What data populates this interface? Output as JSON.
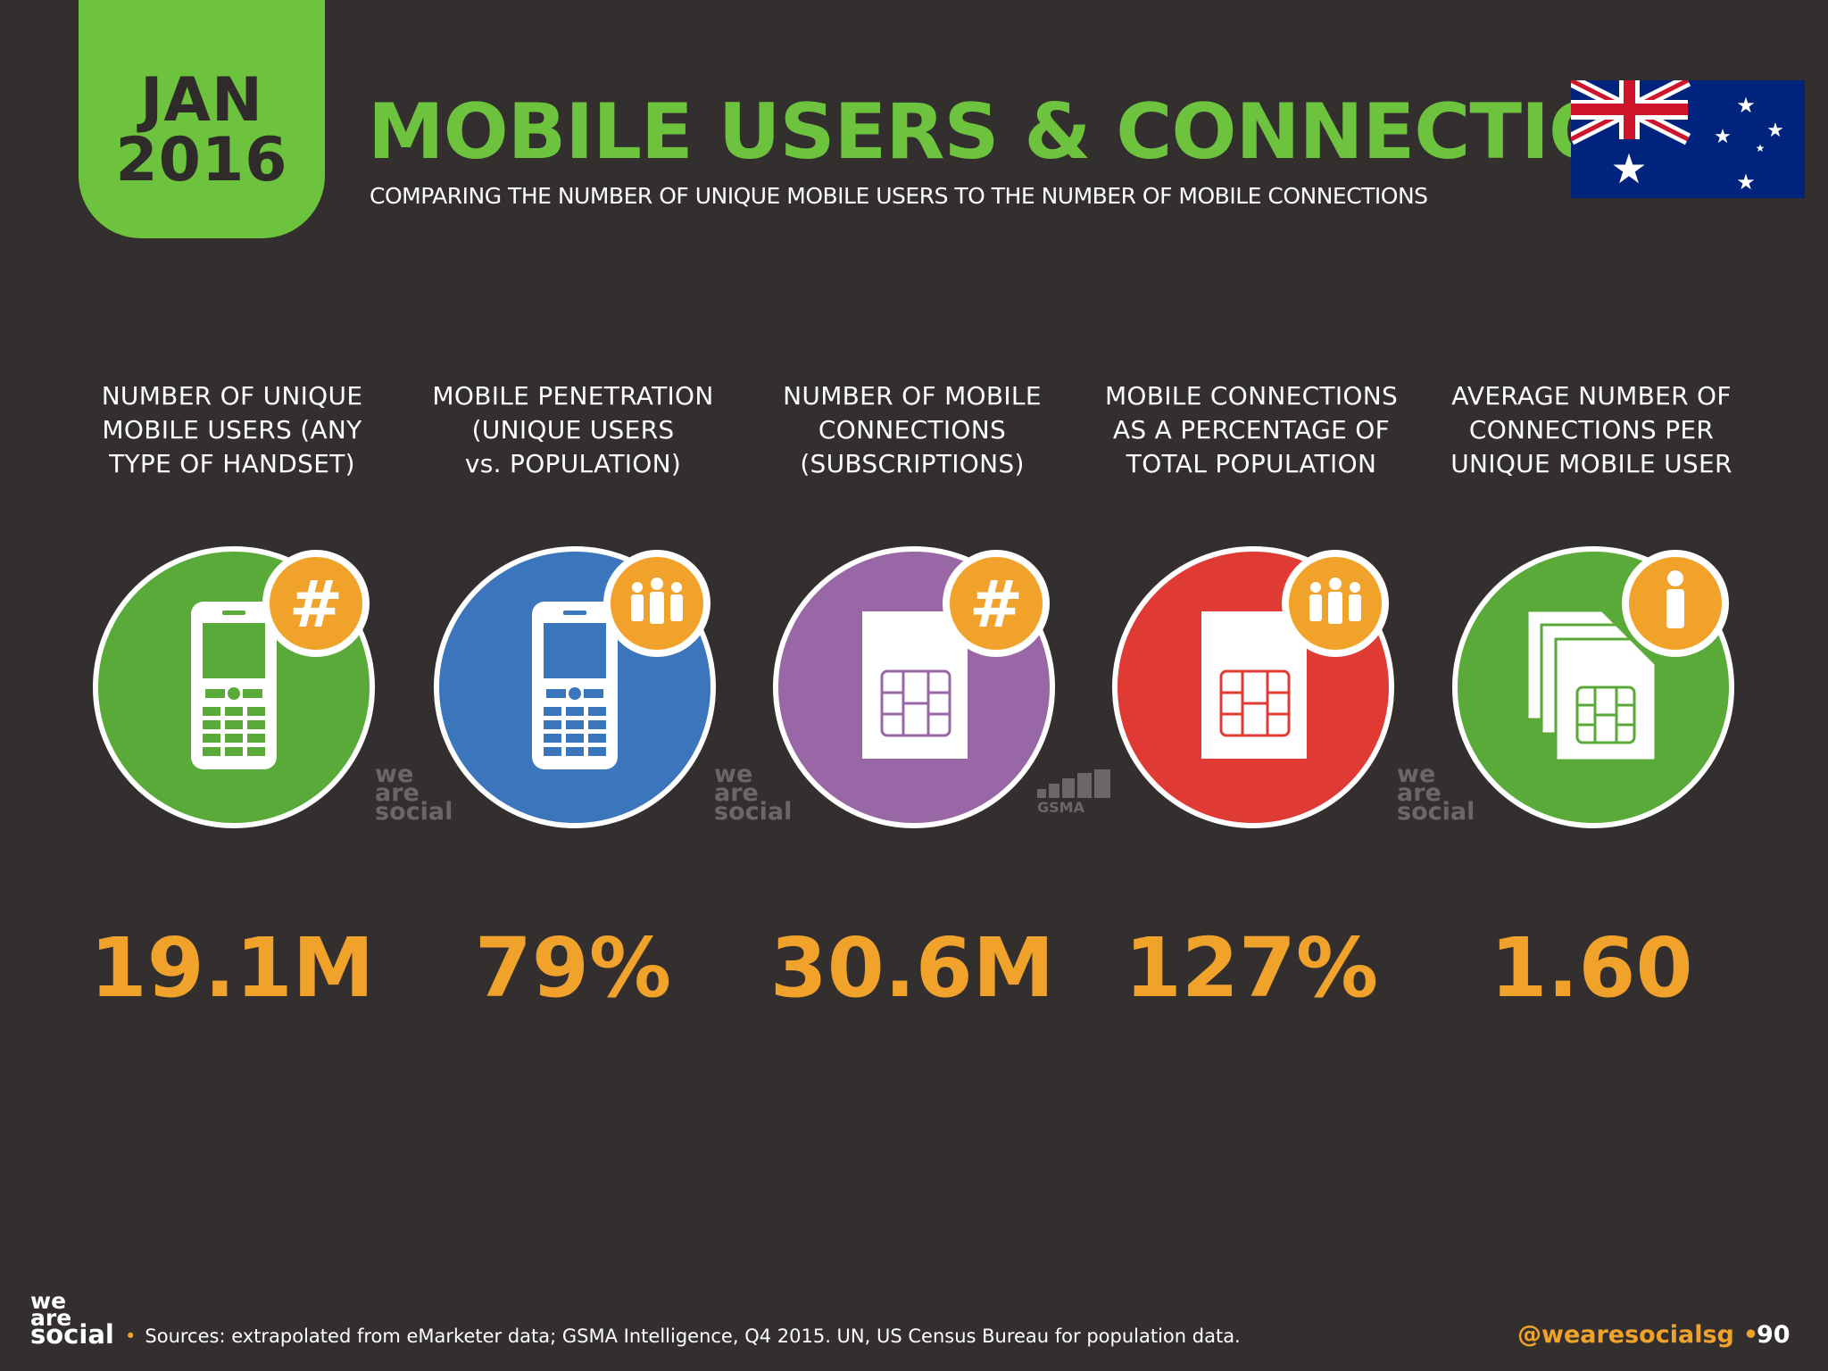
{
  "header": {
    "date_month": "JAN",
    "date_year": "2016",
    "title": "MOBILE USERS & CONNECTIONS",
    "subtitle": "COMPARING THE NUMBER OF UNIQUE MOBILE USERS TO THE NUMBER OF MOBILE CONNECTIONS",
    "flag": "australia-flag-icon"
  },
  "stats": [
    {
      "label": [
        "NUMBER OF UNIQUE",
        "MOBILE USERS (ANY",
        "TYPE OF HANDSET)"
      ],
      "value": "19.1M",
      "icon": "mobile-phone-icon",
      "badge": "hashtag-icon",
      "circle_color": "#5aaa3a"
    },
    {
      "label": [
        "MOBILE PENETRATION",
        "(UNIQUE USERS",
        "vs. POPULATION)"
      ],
      "value": "79%",
      "icon": "mobile-phone-icon",
      "badge": "people-group-icon",
      "circle_color": "#3b75bb"
    },
    {
      "label": [
        "NUMBER OF MOBILE",
        "CONNECTIONS",
        "(SUBSCRIPTIONS)"
      ],
      "value": "30.6M",
      "icon": "sim-card-icon",
      "badge": "hashtag-icon",
      "circle_color": "#9a67a6"
    },
    {
      "label": [
        "MOBILE CONNECTIONS",
        "AS A PERCENTAGE OF",
        "TOTAL POPULATION"
      ],
      "value": "127%",
      "icon": "sim-card-icon",
      "badge": "people-group-icon",
      "circle_color": "#e03a35"
    },
    {
      "label": [
        "AVERAGE NUMBER OF",
        "CONNECTIONS PER",
        "UNIQUE MOBILE USER"
      ],
      "value": "1.60",
      "icon": "sim-cards-stack-icon",
      "badge": "person-icon",
      "circle_color": "#5aaa3a"
    }
  ],
  "watermarks": {
    "wearesocial": [
      "we",
      "are",
      "social"
    ],
    "gsma": "GSMA"
  },
  "footer": {
    "logo": [
      "we",
      "are",
      "social"
    ],
    "bullet": "•",
    "sources": "Sources: extrapolated from eMarketer data; GSMA Intelligence, Q4 2015. UN, US Census Bureau for population data.",
    "handle": "@wearesocialsg",
    "page_number": "90"
  },
  "colors": {
    "background": "#332f2e",
    "accent_green": "#6dc33d",
    "accent_orange": "#f0a22b"
  }
}
